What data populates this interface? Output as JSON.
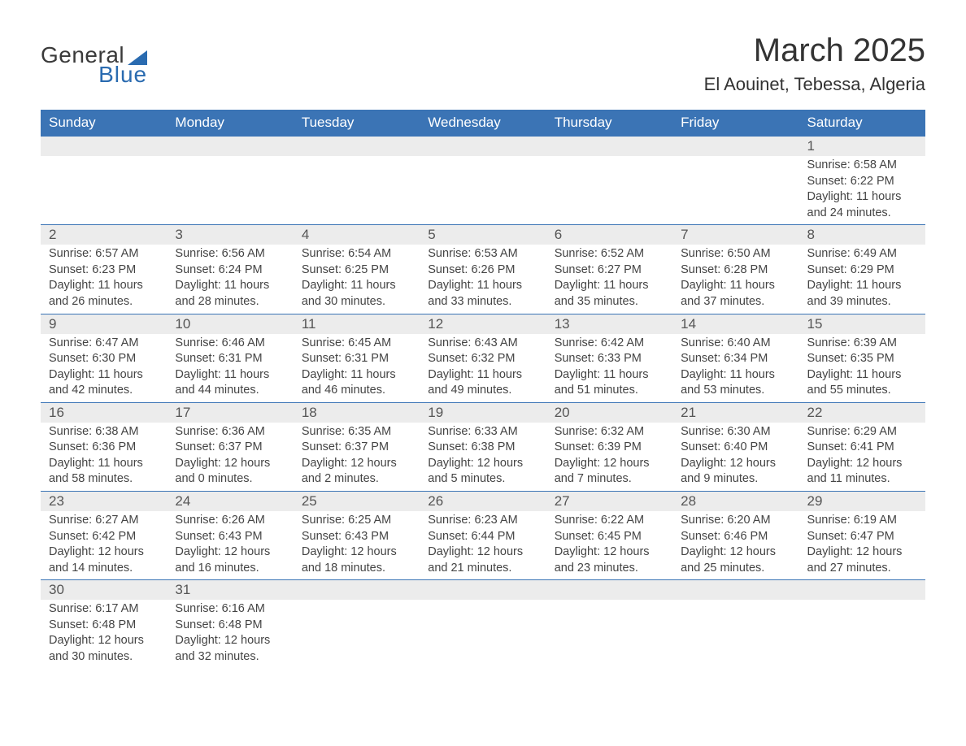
{
  "logo": {
    "line1": "General",
    "line2": "Blue"
  },
  "title": "March 2025",
  "location": "El Aouinet, Tebessa, Algeria",
  "colors": {
    "header_bg": "#3b74b5",
    "header_text": "#ffffff",
    "daynum_bg": "#ececec",
    "body_text": "#444444",
    "border": "#3b74b5",
    "logo_blue": "#2a6bb0"
  },
  "weekdays": [
    "Sunday",
    "Monday",
    "Tuesday",
    "Wednesday",
    "Thursday",
    "Friday",
    "Saturday"
  ],
  "weeks": [
    [
      null,
      null,
      null,
      null,
      null,
      null,
      {
        "n": "1",
        "sr": "6:58 AM",
        "ss": "6:22 PM",
        "dh": "11",
        "dm": "24"
      }
    ],
    [
      {
        "n": "2",
        "sr": "6:57 AM",
        "ss": "6:23 PM",
        "dh": "11",
        "dm": "26"
      },
      {
        "n": "3",
        "sr": "6:56 AM",
        "ss": "6:24 PM",
        "dh": "11",
        "dm": "28"
      },
      {
        "n": "4",
        "sr": "6:54 AM",
        "ss": "6:25 PM",
        "dh": "11",
        "dm": "30"
      },
      {
        "n": "5",
        "sr": "6:53 AM",
        "ss": "6:26 PM",
        "dh": "11",
        "dm": "33"
      },
      {
        "n": "6",
        "sr": "6:52 AM",
        "ss": "6:27 PM",
        "dh": "11",
        "dm": "35"
      },
      {
        "n": "7",
        "sr": "6:50 AM",
        "ss": "6:28 PM",
        "dh": "11",
        "dm": "37"
      },
      {
        "n": "8",
        "sr": "6:49 AM",
        "ss": "6:29 PM",
        "dh": "11",
        "dm": "39"
      }
    ],
    [
      {
        "n": "9",
        "sr": "6:47 AM",
        "ss": "6:30 PM",
        "dh": "11",
        "dm": "42"
      },
      {
        "n": "10",
        "sr": "6:46 AM",
        "ss": "6:31 PM",
        "dh": "11",
        "dm": "44"
      },
      {
        "n": "11",
        "sr": "6:45 AM",
        "ss": "6:31 PM",
        "dh": "11",
        "dm": "46"
      },
      {
        "n": "12",
        "sr": "6:43 AM",
        "ss": "6:32 PM",
        "dh": "11",
        "dm": "49"
      },
      {
        "n": "13",
        "sr": "6:42 AM",
        "ss": "6:33 PM",
        "dh": "11",
        "dm": "51"
      },
      {
        "n": "14",
        "sr": "6:40 AM",
        "ss": "6:34 PM",
        "dh": "11",
        "dm": "53"
      },
      {
        "n": "15",
        "sr": "6:39 AM",
        "ss": "6:35 PM",
        "dh": "11",
        "dm": "55"
      }
    ],
    [
      {
        "n": "16",
        "sr": "6:38 AM",
        "ss": "6:36 PM",
        "dh": "11",
        "dm": "58"
      },
      {
        "n": "17",
        "sr": "6:36 AM",
        "ss": "6:37 PM",
        "dh": "12",
        "dm": "0"
      },
      {
        "n": "18",
        "sr": "6:35 AM",
        "ss": "6:37 PM",
        "dh": "12",
        "dm": "2"
      },
      {
        "n": "19",
        "sr": "6:33 AM",
        "ss": "6:38 PM",
        "dh": "12",
        "dm": "5"
      },
      {
        "n": "20",
        "sr": "6:32 AM",
        "ss": "6:39 PM",
        "dh": "12",
        "dm": "7"
      },
      {
        "n": "21",
        "sr": "6:30 AM",
        "ss": "6:40 PM",
        "dh": "12",
        "dm": "9"
      },
      {
        "n": "22",
        "sr": "6:29 AM",
        "ss": "6:41 PM",
        "dh": "12",
        "dm": "11"
      }
    ],
    [
      {
        "n": "23",
        "sr": "6:27 AM",
        "ss": "6:42 PM",
        "dh": "12",
        "dm": "14"
      },
      {
        "n": "24",
        "sr": "6:26 AM",
        "ss": "6:43 PM",
        "dh": "12",
        "dm": "16"
      },
      {
        "n": "25",
        "sr": "6:25 AM",
        "ss": "6:43 PM",
        "dh": "12",
        "dm": "18"
      },
      {
        "n": "26",
        "sr": "6:23 AM",
        "ss": "6:44 PM",
        "dh": "12",
        "dm": "21"
      },
      {
        "n": "27",
        "sr": "6:22 AM",
        "ss": "6:45 PM",
        "dh": "12",
        "dm": "23"
      },
      {
        "n": "28",
        "sr": "6:20 AM",
        "ss": "6:46 PM",
        "dh": "12",
        "dm": "25"
      },
      {
        "n": "29",
        "sr": "6:19 AM",
        "ss": "6:47 PM",
        "dh": "12",
        "dm": "27"
      }
    ],
    [
      {
        "n": "30",
        "sr": "6:17 AM",
        "ss": "6:48 PM",
        "dh": "12",
        "dm": "30"
      },
      {
        "n": "31",
        "sr": "6:16 AM",
        "ss": "6:48 PM",
        "dh": "12",
        "dm": "32"
      },
      null,
      null,
      null,
      null,
      null
    ]
  ],
  "labels": {
    "sunrise": "Sunrise: ",
    "sunset": "Sunset: ",
    "daylight1": "Daylight: ",
    "hours": " hours",
    "and": "and ",
    "minutes": " minutes."
  }
}
